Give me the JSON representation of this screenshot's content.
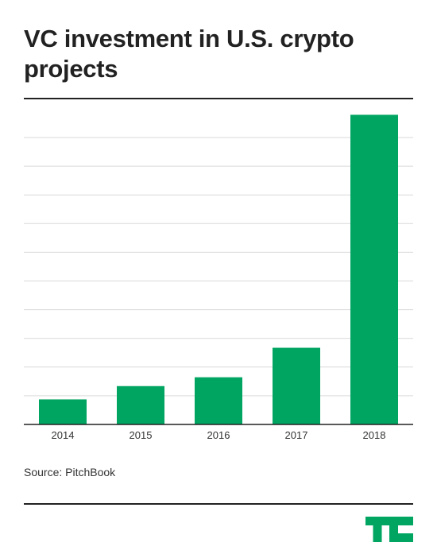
{
  "title": "VC investment in U.S. crypto projects",
  "source": "Source: PitchBook",
  "logo": {
    "icon": "techcrunch-logo",
    "color": "#00a562"
  },
  "colors": {
    "bar": "#00a562",
    "grid": "#d9d9d9",
    "axis": "#222222"
  },
  "chart_data": {
    "type": "bar",
    "title": "VC investment in U.S. crypto projects",
    "xlabel": "",
    "ylabel": "",
    "categories": [
      "2014",
      "2015",
      "2016",
      "2017",
      "2018"
    ],
    "values": [
      8.5,
      13,
      16,
      26,
      105
    ],
    "ylim": [
      0,
      107
    ],
    "grid": true,
    "gridlines": 10,
    "y_tick_labels_shown": false,
    "legend": "none"
  }
}
